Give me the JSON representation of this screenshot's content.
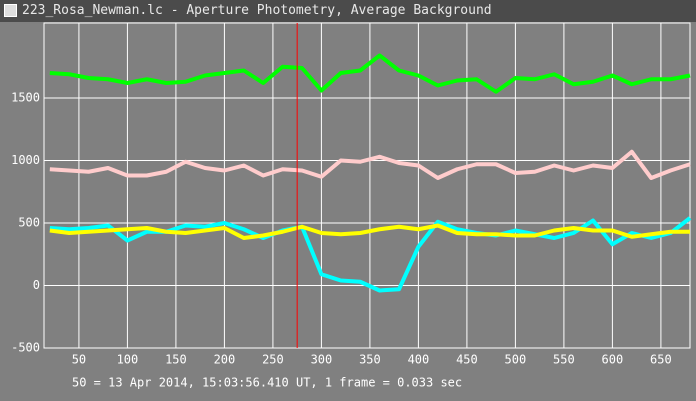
{
  "window_title": "223_Rosa_Newman.lc - Aperture Photometry, Average Background",
  "chart_data": {
    "type": "line",
    "footer": "50 = 13 Apr 2014, 15:03:56.410 UT, 1 frame = 0.033 sec",
    "x": [
      20,
      40,
      60,
      80,
      100,
      120,
      140,
      160,
      180,
      200,
      220,
      240,
      260,
      280,
      300,
      320,
      340,
      360,
      380,
      400,
      420,
      440,
      460,
      480,
      500,
      520,
      540,
      560,
      580,
      600,
      620,
      640,
      660,
      680
    ],
    "series": [
      {
        "color": "#00ff00",
        "values": [
          1700,
          1690,
          1660,
          1650,
          1620,
          1650,
          1620,
          1630,
          1680,
          1700,
          1720,
          1620,
          1750,
          1740,
          1560,
          1700,
          1720,
          1840,
          1720,
          1680,
          1600,
          1640,
          1650,
          1550,
          1660,
          1650,
          1690,
          1610,
          1630,
          1680,
          1610,
          1650,
          1650,
          1680
        ]
      },
      {
        "color": "#ffcccc",
        "values": [
          930,
          920,
          910,
          940,
          880,
          880,
          910,
          990,
          940,
          920,
          960,
          880,
          930,
          920,
          870,
          1000,
          990,
          1030,
          980,
          960,
          860,
          930,
          970,
          970,
          900,
          910,
          960,
          920,
          960,
          940,
          1070,
          860,
          920,
          970
        ]
      },
      {
        "color": "#00ffff",
        "values": [
          460,
          450,
          460,
          480,
          360,
          430,
          430,
          480,
          470,
          500,
          450,
          380,
          440,
          470,
          90,
          40,
          30,
          -40,
          -30,
          310,
          510,
          450,
          420,
          400,
          440,
          410,
          380,
          420,
          520,
          330,
          420,
          380,
          420,
          540
        ]
      },
      {
        "color": "#ffff00",
        "values": [
          440,
          420,
          430,
          440,
          450,
          460,
          430,
          420,
          440,
          460,
          380,
          400,
          430,
          470,
          420,
          410,
          420,
          450,
          470,
          450,
          480,
          420,
          410,
          410,
          400,
          400,
          440,
          460,
          440,
          440,
          390,
          410,
          430,
          430
        ]
      }
    ],
    "cursor_x": 275,
    "cursor_color": "#ff0000",
    "xlim": [
      14,
      680
    ],
    "ylim": [
      -500,
      2100
    ],
    "xticks": [
      50,
      100,
      150,
      200,
      250,
      300,
      350,
      400,
      450,
      500,
      550,
      600,
      650
    ],
    "yticks": [
      -500,
      0,
      500,
      1000,
      1500
    ],
    "grid": true
  }
}
